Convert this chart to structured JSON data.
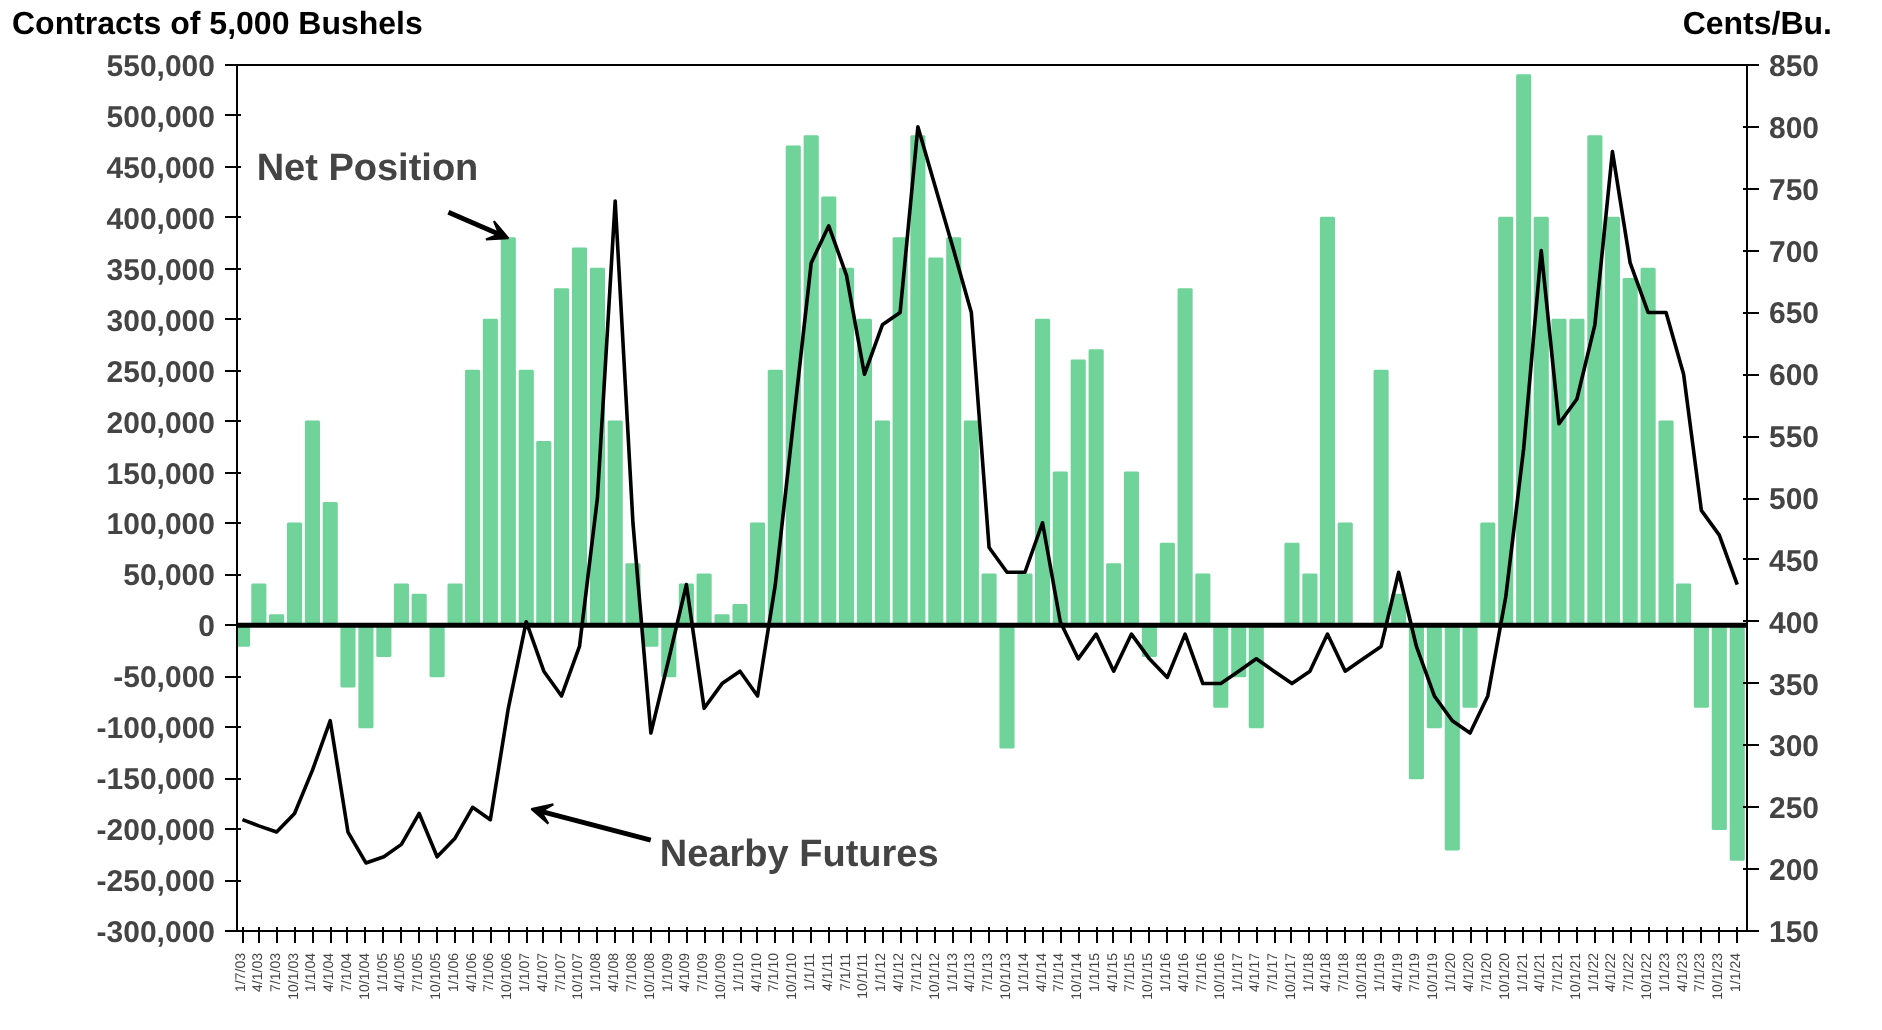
{
  "chart_data": {
    "type": "bar",
    "ylabel": "Contracts of 5,000 Bushels",
    "y2label": "Cents/Bu.",
    "x": [
      "2003-01-07",
      "2003-04-01",
      "2003-07-01",
      "2003-10-01",
      "2004-01-01",
      "2004-04-01",
      "2004-07-01",
      "2004-10-01",
      "2005-01-01",
      "2005-04-01",
      "2005-07-01",
      "2005-10-01",
      "2006-01-01",
      "2006-04-01",
      "2006-07-01",
      "2006-10-01",
      "2007-01-01",
      "2007-04-01",
      "2007-07-01",
      "2007-10-01",
      "2008-01-01",
      "2008-04-01",
      "2008-07-01",
      "2008-10-01",
      "2009-01-01",
      "2009-04-01",
      "2009-07-01",
      "2009-10-01",
      "2010-01-01",
      "2010-04-01",
      "2010-07-01",
      "2010-10-01",
      "2011-01-01",
      "2011-04-01",
      "2011-07-01",
      "2011-10-01",
      "2012-01-01",
      "2012-04-01",
      "2012-07-01",
      "2012-10-01",
      "2013-01-01",
      "2013-04-01",
      "2013-07-01",
      "2013-10-01",
      "2014-01-01",
      "2014-04-01",
      "2014-07-01",
      "2014-10-01",
      "2015-01-01",
      "2015-04-01",
      "2015-07-01",
      "2015-10-01",
      "2016-01-01",
      "2016-04-01",
      "2016-07-01",
      "2016-10-01",
      "2017-01-01",
      "2017-04-01",
      "2017-07-01",
      "2017-10-01",
      "2018-01-01",
      "2018-04-01",
      "2018-07-01",
      "2018-10-01",
      "2019-01-01",
      "2019-04-01",
      "2019-07-01",
      "2019-10-01",
      "2020-01-01",
      "2020-04-01",
      "2020-07-01",
      "2020-10-01",
      "2021-01-01",
      "2021-04-01",
      "2021-07-01",
      "2021-10-01",
      "2022-01-01",
      "2022-04-01",
      "2022-07-01",
      "2022-10-01",
      "2023-01-01",
      "2023-04-01",
      "2023-07-01",
      "2023-10-01",
      "2024-01-01"
    ],
    "series": [
      {
        "color": "#6fd39a",
        "values": [
          -20000,
          40000,
          10000,
          100000,
          200000,
          120000,
          -60000,
          -100000,
          -30000,
          40000,
          30000,
          -50000,
          40000,
          250000,
          300000,
          380000,
          250000,
          180000,
          330000,
          370000,
          350000,
          200000,
          60000,
          -20000,
          -50000,
          40000,
          50000,
          10000,
          20000,
          100000,
          250000,
          470000,
          480000,
          420000,
          350000,
          300000,
          200000,
          380000,
          480000,
          360000,
          380000,
          200000,
          50000,
          -120000,
          50000,
          300000,
          150000,
          260000,
          270000,
          60000,
          150000,
          -30000,
          80000,
          330000,
          50000,
          -80000,
          -50000,
          -100000,
          0,
          80000,
          50000,
          400000,
          100000,
          0,
          250000,
          30000,
          -150000,
          -100000,
          -220000,
          -80000,
          100000,
          400000,
          540000,
          400000,
          300000,
          300000,
          480000,
          400000,
          340000,
          350000,
          200000,
          40000,
          -80000,
          -200000,
          -230000
        ]
      },
      {
        "type": "line",
        "axis": "y2",
        "color": "#000000",
        "values": [
          240,
          235,
          230,
          245,
          280,
          320,
          230,
          205,
          210,
          220,
          245,
          210,
          225,
          250,
          240,
          330,
          400,
          360,
          340,
          380,
          500,
          740,
          480,
          310,
          370,
          430,
          330,
          350,
          360,
          340,
          430,
          560,
          690,
          720,
          680,
          600,
          640,
          650,
          800,
          750,
          700,
          650,
          460,
          440,
          440,
          480,
          400,
          370,
          390,
          360,
          390,
          370,
          355,
          390,
          350,
          350,
          360,
          370,
          360,
          350,
          360,
          390,
          360,
          370,
          380,
          440,
          380,
          340,
          320,
          310,
          340,
          420,
          540,
          700,
          560,
          580,
          640,
          780,
          690,
          650,
          650,
          600,
          490,
          470,
          430
        ]
      }
    ],
    "xlim": [
      "2002-12-10",
      "2024-02-20"
    ],
    "ylim": [
      -300000,
      550000
    ],
    "yticks": [
      {
        "value": -300000,
        "label": "-300,000"
      },
      {
        "value": -250000,
        "label": "-250,000"
      },
      {
        "value": -200000,
        "label": "-200,000"
      },
      {
        "value": -150000,
        "label": "-150,000"
      },
      {
        "value": -100000,
        "label": "-100,000"
      },
      {
        "value": -50000,
        "label": "-50,000"
      },
      {
        "value": 0,
        "label": "0"
      },
      {
        "value": 50000,
        "label": "50,000"
      },
      {
        "value": 100000,
        "label": "100,000"
      },
      {
        "value": 150000,
        "label": "150,000"
      },
      {
        "value": 200000,
        "label": "200,000"
      },
      {
        "value": 250000,
        "label": "250,000"
      },
      {
        "value": 300000,
        "label": "300,000"
      },
      {
        "value": 350000,
        "label": "350,000"
      },
      {
        "value": 400000,
        "label": "400,000"
      },
      {
        "value": 450000,
        "label": "450,000"
      },
      {
        "value": 500000,
        "label": "500,000"
      },
      {
        "value": 550000,
        "label": "550,000"
      }
    ],
    "y2lim": [
      150,
      850
    ],
    "y2ticks": [
      150,
      200,
      250,
      300,
      350,
      400,
      450,
      500,
      550,
      600,
      650,
      700,
      750,
      800,
      850
    ],
    "xticks": [
      {
        "value": "2003-01-07",
        "label": "1/7/03"
      },
      {
        "value": "2003-04-01",
        "label": "4/1/03"
      },
      {
        "value": "2003-07-01",
        "label": "7/1/03"
      },
      {
        "value": "2003-10-01",
        "label": "10/1/03"
      },
      {
        "value": "2004-01-01",
        "label": "1/1/04"
      },
      {
        "value": "2004-04-01",
        "label": "4/1/04"
      },
      {
        "value": "2004-07-01",
        "label": "7/1/04"
      },
      {
        "value": "2004-10-01",
        "label": "10/1/04"
      },
      {
        "value": "2005-01-01",
        "label": "1/1/05"
      },
      {
        "value": "2005-04-01",
        "label": "4/1/05"
      },
      {
        "value": "2005-07-01",
        "label": "7/1/05"
      },
      {
        "value": "2005-10-01",
        "label": "10/1/05"
      },
      {
        "value": "2006-01-01",
        "label": "1/1/06"
      },
      {
        "value": "2006-04-01",
        "label": "4/1/06"
      },
      {
        "value": "2006-07-01",
        "label": "7/1/06"
      },
      {
        "value": "2006-10-01",
        "label": "10/1/06"
      },
      {
        "value": "2007-01-01",
        "label": "1/1/07"
      },
      {
        "value": "2007-04-01",
        "label": "4/1/07"
      },
      {
        "value": "2007-07-01",
        "label": "7/1/07"
      },
      {
        "value": "2007-10-01",
        "label": "10/1/07"
      },
      {
        "value": "2008-01-01",
        "label": "1/1/08"
      },
      {
        "value": "2008-04-01",
        "label": "4/1/08"
      },
      {
        "value": "2008-07-01",
        "label": "7/1/08"
      },
      {
        "value": "2008-10-01",
        "label": "10/1/08"
      },
      {
        "value": "2009-01-01",
        "label": "1/1/09"
      },
      {
        "value": "2009-04-01",
        "label": "4/1/09"
      },
      {
        "value": "2009-07-01",
        "label": "7/1/09"
      },
      {
        "value": "2009-10-01",
        "label": "10/1/09"
      },
      {
        "value": "2010-01-01",
        "label": "1/1/10"
      },
      {
        "value": "2010-04-01",
        "label": "4/1/10"
      },
      {
        "value": "2010-07-01",
        "label": "7/1/10"
      },
      {
        "value": "2010-10-01",
        "label": "10/1/10"
      },
      {
        "value": "2011-01-01",
        "label": "1/1/11"
      },
      {
        "value": "2011-04-01",
        "label": "4/1/11"
      },
      {
        "value": "2011-07-01",
        "label": "7/1/11"
      },
      {
        "value": "2011-10-01",
        "label": "10/1/11"
      },
      {
        "value": "2012-01-01",
        "label": "1/1/12"
      },
      {
        "value": "2012-04-01",
        "label": "4/1/12"
      },
      {
        "value": "2012-07-01",
        "label": "7/1/12"
      },
      {
        "value": "2012-10-01",
        "label": "10/1/12"
      },
      {
        "value": "2013-01-01",
        "label": "1/1/13"
      },
      {
        "value": "2013-04-01",
        "label": "4/1/13"
      },
      {
        "value": "2013-07-01",
        "label": "7/1/13"
      },
      {
        "value": "2013-10-01",
        "label": "10/1/13"
      },
      {
        "value": "2014-01-01",
        "label": "1/1/14"
      },
      {
        "value": "2014-04-01",
        "label": "4/1/14"
      },
      {
        "value": "2014-07-01",
        "label": "7/1/14"
      },
      {
        "value": "2014-10-01",
        "label": "10/1/14"
      },
      {
        "value": "2015-01-01",
        "label": "1/1/15"
      },
      {
        "value": "2015-04-01",
        "label": "4/1/15"
      },
      {
        "value": "2015-07-01",
        "label": "7/1/15"
      },
      {
        "value": "2015-10-01",
        "label": "10/1/15"
      },
      {
        "value": "2016-01-01",
        "label": "1/1/16"
      },
      {
        "value": "2016-04-01",
        "label": "4/1/16"
      },
      {
        "value": "2016-07-01",
        "label": "7/1/16"
      },
      {
        "value": "2016-10-01",
        "label": "10/1/16"
      },
      {
        "value": "2017-01-01",
        "label": "1/1/17"
      },
      {
        "value": "2017-04-01",
        "label": "4/1/17"
      },
      {
        "value": "2017-07-01",
        "label": "7/1/17"
      },
      {
        "value": "2017-10-01",
        "label": "10/1/17"
      },
      {
        "value": "2018-01-01",
        "label": "1/1/18"
      },
      {
        "value": "2018-04-01",
        "label": "4/1/18"
      },
      {
        "value": "2018-07-01",
        "label": "7/1/18"
      },
      {
        "value": "2018-10-01",
        "label": "10/1/18"
      },
      {
        "value": "2019-01-01",
        "label": "1/1/19"
      },
      {
        "value": "2019-04-01",
        "label": "4/1/19"
      },
      {
        "value": "2019-07-01",
        "label": "7/1/19"
      },
      {
        "value": "2019-10-01",
        "label": "10/1/19"
      },
      {
        "value": "2020-01-01",
        "label": "1/1/20"
      },
      {
        "value": "2020-04-01",
        "label": "4/1/20"
      },
      {
        "value": "2020-07-01",
        "label": "7/1/20"
      },
      {
        "value": "2020-10-01",
        "label": "10/1/20"
      },
      {
        "value": "2021-01-01",
        "label": "1/1/21"
      },
      {
        "value": "2021-04-01",
        "label": "4/1/21"
      },
      {
        "value": "2021-07-01",
        "label": "7/1/21"
      },
      {
        "value": "2021-10-01",
        "label": "10/1/21"
      },
      {
        "value": "2022-01-01",
        "label": "1/1/22"
      },
      {
        "value": "2022-04-01",
        "label": "4/1/22"
      },
      {
        "value": "2022-07-01",
        "label": "7/1/22"
      },
      {
        "value": "2022-10-01",
        "label": "10/1/22"
      },
      {
        "value": "2023-01-01",
        "label": "1/1/23"
      },
      {
        "value": "2023-04-01",
        "label": "4/1/23"
      },
      {
        "value": "2023-07-01",
        "label": "7/1/23"
      },
      {
        "value": "2023-10-01",
        "label": "10/1/23"
      },
      {
        "value": "2024-01-01",
        "label": "1/1/24"
      }
    ],
    "ref_lines": [
      {
        "axis": "y",
        "value": 0,
        "color": "#000000"
      }
    ],
    "annotations": [
      {
        "text": "Net Position",
        "x": "2006-10-01",
        "y": 380000
      },
      "Nearby Futures"
    ],
    "grid": false
  }
}
